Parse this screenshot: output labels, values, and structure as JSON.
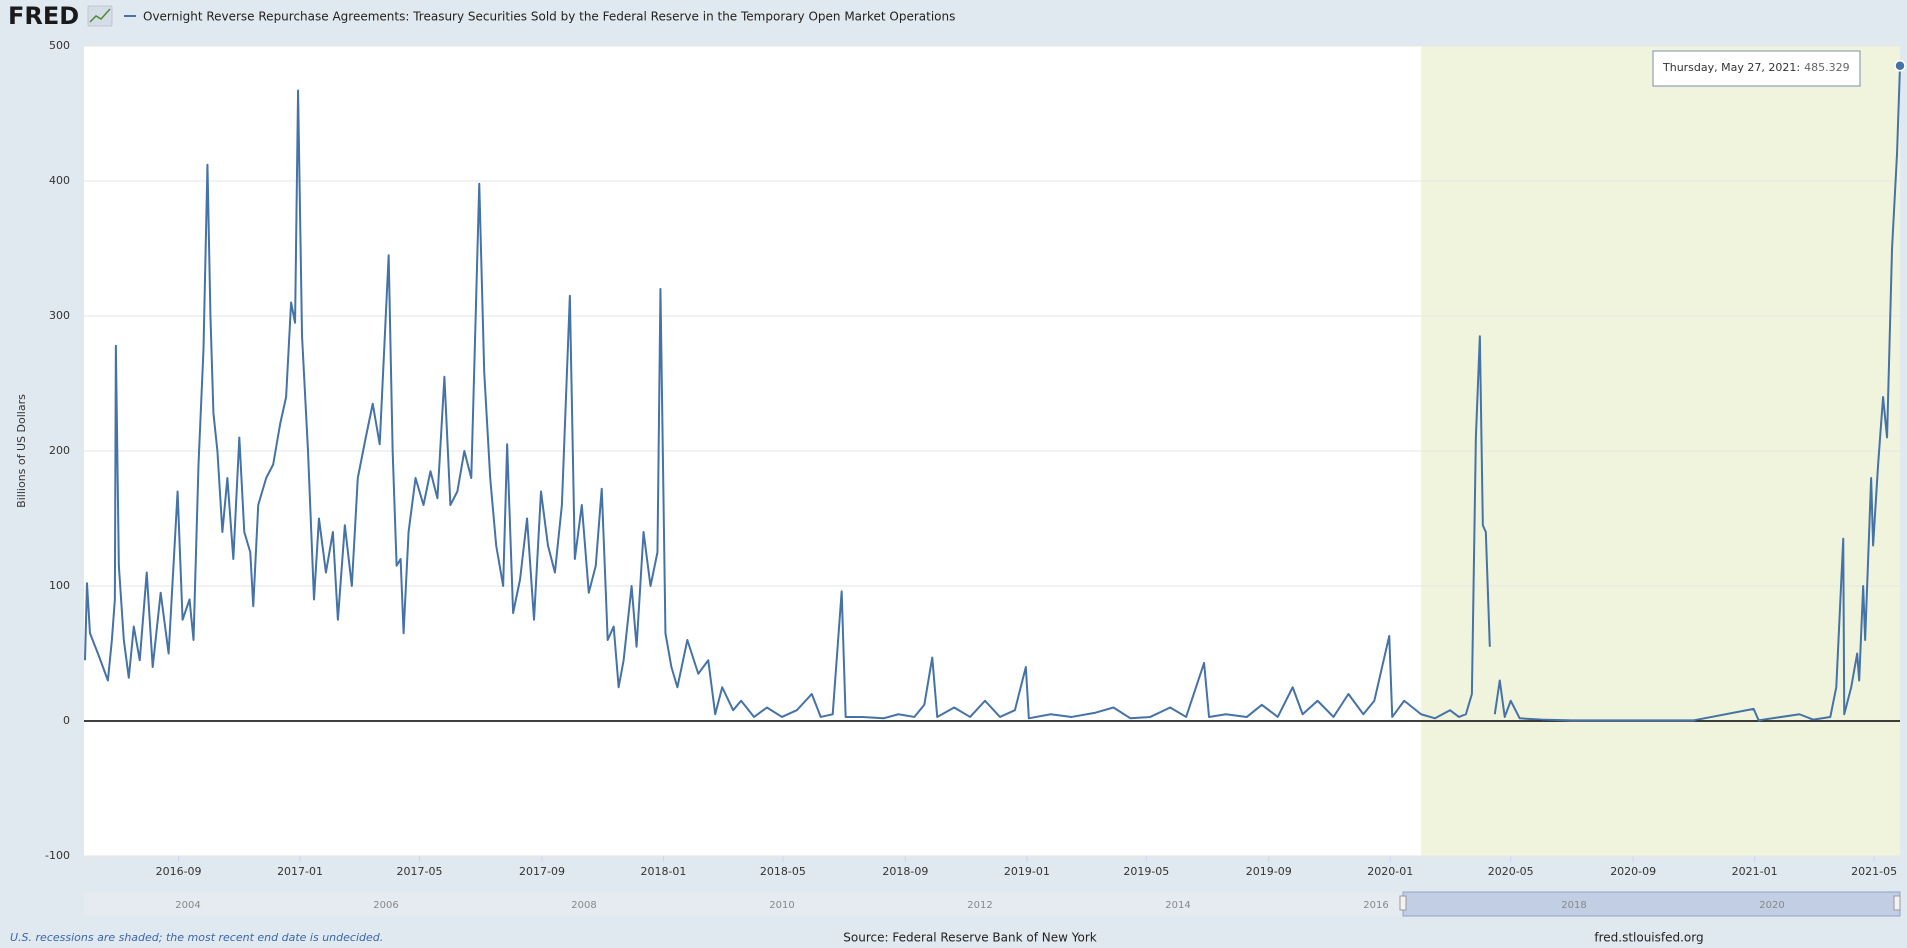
{
  "chart_data": {
    "type": "line",
    "logo": "FRED",
    "title": "Overnight Reverse Repurchase Agreements: Treasury Securities Sold by the Federal Reserve in the Temporary Open Market Operations",
    "ylabel": "Billions of US Dollars",
    "note": "U.S. recessions are shaded; the most recent end date is undecided.",
    "source": "Source: Federal Reserve Bank of New York",
    "site": "fred.stlouisfed.org",
    "tooltip": {
      "label": "Thursday, May 27, 2021:"
    },
    "navigator_labels": [
      "2004",
      "2006",
      "2008",
      "2010",
      "2012",
      "2014",
      "2016",
      "2018",
      "2020"
    ],
    "xlim": [
      "2016-05-29",
      "2021-05-27"
    ],
    "ylim": [
      -100,
      500
    ],
    "yticks": [
      -100,
      0,
      100,
      200,
      300,
      400,
      500
    ],
    "xticks": [
      {
        "value": "2016-09-01",
        "label": "2016-09"
      },
      {
        "value": "2017-01-01",
        "label": "2017-01"
      },
      {
        "value": "2017-05-01",
        "label": "2017-05"
      },
      {
        "value": "2017-09-01",
        "label": "2017-09"
      },
      {
        "value": "2018-01-01",
        "label": "2018-01"
      },
      {
        "value": "2018-05-01",
        "label": "2018-05"
      },
      {
        "value": "2018-09-01",
        "label": "2018-09"
      },
      {
        "value": "2019-01-01",
        "label": "2019-01"
      },
      {
        "value": "2019-05-01",
        "label": "2019-05"
      },
      {
        "value": "2019-09-01",
        "label": "2019-09"
      },
      {
        "value": "2020-01-01",
        "label": "2020-01"
      },
      {
        "value": "2020-05-01",
        "label": "2020-05"
      },
      {
        "value": "2020-09-01",
        "label": "2020-09"
      },
      {
        "value": "2021-01-01",
        "label": "2021-01"
      },
      {
        "value": "2021-05-01",
        "label": "2021-05"
      }
    ],
    "grid": true,
    "recessions": [
      [
        "2020-02-01",
        "2021-05-27"
      ]
    ],
    "recession_color": "#f1f4dc",
    "x": [
      "2016-05-30",
      "2016-06-01",
      "2016-06-04",
      "2016-06-12",
      "2016-06-22",
      "2016-06-26",
      "2016-06-29",
      "2016-06-30",
      "2016-07-03",
      "2016-07-08",
      "2016-07-13",
      "2016-07-18",
      "2016-07-24",
      "2016-07-31",
      "2016-08-06",
      "2016-08-14",
      "2016-08-22",
      "2016-08-31",
      "2016-09-05",
      "2016-09-12",
      "2016-09-16",
      "2016-09-21",
      "2016-09-26",
      "2016-09-30",
      "2016-10-03",
      "2016-10-06",
      "2016-10-10",
      "2016-10-15",
      "2016-10-20",
      "2016-10-26",
      "2016-11-01",
      "2016-11-06",
      "2016-11-12",
      "2016-11-15",
      "2016-11-20",
      "2016-11-28",
      "2016-12-05",
      "2016-12-12",
      "2016-12-18",
      "2016-12-23",
      "2016-12-27",
      "2016-12-30",
      "2017-01-03",
      "2017-01-09",
      "2017-01-15",
      "2017-01-20",
      "2017-01-27",
      "2017-02-03",
      "2017-02-08",
      "2017-02-15",
      "2017-02-22",
      "2017-02-28",
      "2017-03-08",
      "2017-03-15",
      "2017-03-22",
      "2017-03-31",
      "2017-04-04",
      "2017-04-08",
      "2017-04-12",
      "2017-04-15",
      "2017-04-20",
      "2017-04-27",
      "2017-05-05",
      "2017-05-12",
      "2017-05-19",
      "2017-05-26",
      "2017-06-01",
      "2017-06-08",
      "2017-06-15",
      "2017-06-22",
      "2017-06-30",
      "2017-07-05",
      "2017-07-11",
      "2017-07-17",
      "2017-07-24",
      "2017-07-28",
      "2017-08-03",
      "2017-08-10",
      "2017-08-17",
      "2017-08-24",
      "2017-08-31",
      "2017-09-07",
      "2017-09-14",
      "2017-09-21",
      "2017-09-29",
      "2017-10-04",
      "2017-10-11",
      "2017-10-18",
      "2017-10-25",
      "2017-10-31",
      "2017-11-06",
      "2017-11-12",
      "2017-11-17",
      "2017-11-22",
      "2017-11-30",
      "2017-12-05",
      "2017-12-12",
      "2017-12-19",
      "2017-12-26",
      "2017-12-29",
      "2018-01-03",
      "2018-01-09",
      "2018-01-15",
      "2018-01-25",
      "2018-02-05",
      "2018-02-15",
      "2018-02-22",
      "2018-03-01",
      "2018-03-12",
      "2018-03-20",
      "2018-04-02",
      "2018-04-15",
      "2018-04-30",
      "2018-05-15",
      "2018-05-30",
      "2018-06-08",
      "2018-06-20",
      "2018-06-29",
      "2018-07-03",
      "2018-07-20",
      "2018-08-10",
      "2018-08-25",
      "2018-09-10",
      "2018-09-20",
      "2018-09-28",
      "2018-10-03",
      "2018-10-20",
      "2018-11-05",
      "2018-11-20",
      "2018-12-05",
      "2018-12-20",
      "2018-12-31",
      "2019-01-03",
      "2019-01-25",
      "2019-02-15",
      "2019-03-10",
      "2019-03-29",
      "2019-04-15",
      "2019-05-05",
      "2019-05-25",
      "2019-06-10",
      "2019-06-28",
      "2019-07-03",
      "2019-07-20",
      "2019-08-10",
      "2019-08-25",
      "2019-09-10",
      "2019-09-25",
      "2019-10-05",
      "2019-10-20",
      "2019-11-05",
      "2019-11-20",
      "2019-12-05",
      "2019-12-16",
      "2019-12-31",
      "2020-01-03",
      "2020-01-15",
      "2020-02-01",
      "2020-02-15",
      "2020-03-01",
      "2020-03-10",
      "2020-03-17",
      "2020-03-23",
      "2020-03-27",
      "2020-03-31",
      "2020-04-03",
      "2020-04-06",
      "2020-04-10",
      "2020-04-12",
      "2020-04-15",
      "2020-04-20",
      "2020-04-25",
      "2020-05-01",
      "2020-05-10",
      "2020-06-01",
      "2020-07-01",
      "2020-09-01",
      "2020-11-01",
      "2020-12-31",
      "2021-01-05",
      "2021-02-15",
      "2021-03-01",
      "2021-03-18",
      "2021-03-24",
      "2021-03-31",
      "2021-04-01",
      "2021-04-08",
      "2021-04-14",
      "2021-04-16",
      "2021-04-20",
      "2021-04-22",
      "2021-04-28",
      "2021-04-30",
      "2021-05-05",
      "2021-05-10",
      "2021-05-14",
      "2021-05-19",
      "2021-05-24",
      "2021-05-27"
    ],
    "series": [
      {
        "name": "Overnight Reverse Repurchase Agreements",
        "color": "#4572a7",
        "values": [
          45,
          102,
          65,
          50,
          30,
          60,
          90,
          278,
          115,
          60,
          32,
          70,
          45,
          110,
          40,
          95,
          50,
          170,
          75,
          90,
          60,
          190,
          275,
          412,
          300,
          228,
          200,
          140,
          180,
          120,
          210,
          140,
          125,
          85,
          160,
          180,
          190,
          220,
          240,
          310,
          295,
          467,
          285,
          200,
          90,
          150,
          110,
          140,
          75,
          145,
          100,
          180,
          210,
          235,
          205,
          345,
          200,
          115,
          120,
          65,
          140,
          180,
          160,
          185,
          165,
          255,
          160,
          170,
          200,
          180,
          398,
          258,
          180,
          130,
          100,
          205,
          80,
          105,
          150,
          75,
          170,
          130,
          110,
          160,
          315,
          120,
          160,
          95,
          115,
          172,
          60,
          70,
          25,
          45,
          100,
          55,
          140,
          100,
          125,
          320,
          65,
          40,
          25,
          60,
          35,
          45,
          5,
          25,
          8,
          15,
          3,
          10,
          3,
          8,
          20,
          3,
          5,
          96,
          3,
          3,
          2,
          5,
          3,
          12,
          47,
          3,
          10,
          3,
          15,
          3,
          8,
          40,
          2,
          5,
          3,
          6,
          10,
          2,
          3,
          10,
          3,
          43,
          3,
          5,
          3,
          12,
          3,
          25,
          5,
          15,
          3,
          20,
          5,
          15,
          63,
          3,
          15,
          5,
          2,
          8,
          3,
          5,
          20,
          210,
          285,
          145,
          140,
          55,
          null,
          5,
          30,
          3,
          15,
          2,
          1,
          0.5,
          0.5,
          0.5,
          9,
          0.5,
          5,
          1,
          3,
          25,
          135,
          5,
          25,
          50,
          30,
          100,
          60,
          180,
          130,
          190,
          240,
          210,
          350,
          420,
          485.329
        ]
      }
    ]
  }
}
